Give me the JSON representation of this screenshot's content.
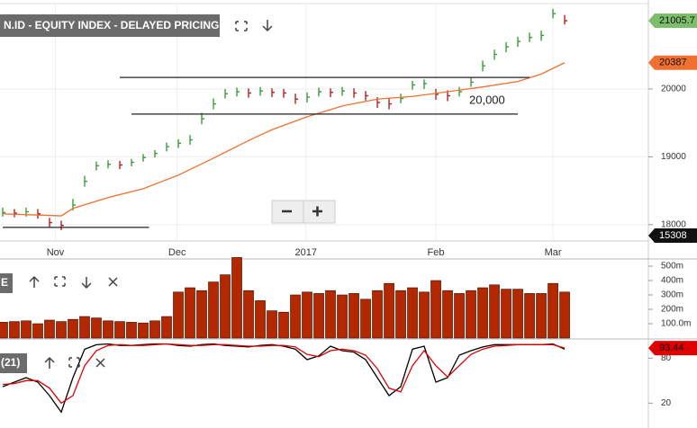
{
  "chart_data": [
    {
      "type": "ohlc",
      "title": "N.ID - EQUITY INDEX - DELAYED PRICING",
      "xlim": [
        -0.23,
        55.15
      ],
      "ylim": [
        17760,
        21245
      ],
      "yticks": [
        18000,
        19000,
        20000
      ],
      "grid": true,
      "xticks": [
        {
          "value": 4.5,
          "label": "Nov"
        },
        {
          "value": 14.9,
          "label": "Dec"
        },
        {
          "value": 25.9,
          "label": "2017"
        },
        {
          "value": 37,
          "label": "Feb"
        },
        {
          "value": 47,
          "label": "Mar"
        }
      ],
      "up_color": "#3a9d3a",
      "down_color": "#b22222",
      "high": [
        18250,
        18230,
        18250,
        18230,
        18100,
        18060,
        18380,
        18720,
        18930,
        18950,
        18940,
        18970,
        19040,
        19100,
        19210,
        19260,
        19320,
        19650,
        19860,
        20000,
        20020,
        20010,
        20030,
        20010,
        20000,
        19930,
        19950,
        20020,
        20010,
        20030,
        20010,
        19970,
        19880,
        19860,
        19930,
        20120,
        20140,
        20000,
        19980,
        20030,
        20170,
        20420,
        20580,
        20690,
        20770,
        20830,
        20860,
        21180,
        21090
      ],
      "low": [
        18120,
        18110,
        18120,
        18090,
        17960,
        17920,
        18210,
        18560,
        18800,
        18830,
        18820,
        18860,
        18930,
        18990,
        19080,
        19130,
        19180,
        19480,
        19700,
        19860,
        19890,
        19870,
        19900,
        19880,
        19870,
        19780,
        19800,
        19890,
        19880,
        19900,
        19870,
        19830,
        19720,
        19700,
        19790,
        19990,
        20000,
        19840,
        19820,
        19890,
        20030,
        20260,
        20430,
        20540,
        20620,
        20690,
        20710,
        21040,
        20950
      ],
      "close": [
        18180,
        18170,
        18190,
        18160,
        18030,
        17990,
        18290,
        18640,
        18870,
        18890,
        18880,
        18920,
        18990,
        19050,
        19150,
        19200,
        19250,
        19560,
        19780,
        19930,
        19960,
        19940,
        19970,
        19950,
        19940,
        19850,
        19880,
        19960,
        19950,
        19970,
        19940,
        19900,
        19800,
        19780,
        19860,
        20060,
        20080,
        19920,
        19900,
        19960,
        20100,
        20340,
        20510,
        20620,
        20700,
        20760,
        20790,
        21110,
        21005.7
      ],
      "ma": {
        "color": "#f07030",
        "x": [
          0,
          5,
          6,
          9,
          12,
          15,
          18,
          21,
          23,
          26,
          29,
          32,
          35,
          38,
          41,
          44,
          46,
          48
        ],
        "values": [
          18160,
          18130,
          18240,
          18400,
          18530,
          18730,
          18980,
          19240,
          19400,
          19590,
          19750,
          19850,
          19890,
          19960,
          20030,
          20110,
          20220,
          20387
        ]
      },
      "hlines": [
        {
          "value": 20170,
          "x": [
            10,
            45
          ]
        },
        {
          "value": 19630,
          "x": [
            11,
            44
          ]
        },
        {
          "value": 17960,
          "x": [
            0,
            12.5
          ]
        }
      ],
      "annotation": "20,000",
      "volume_tag": 15308
    },
    {
      "type": "bar",
      "title": "E",
      "color": "#b42800",
      "ylim": [
        0,
        550
      ],
      "yticks": [
        {
          "value": 100,
          "label": "100.0m"
        },
        {
          "value": 200,
          "label": "200m"
        },
        {
          "value": 300,
          "label": "300m"
        },
        {
          "value": 400,
          "label": "400m"
        },
        {
          "value": 500,
          "label": "500m"
        }
      ],
      "values": [
        110,
        115,
        120,
        100,
        125,
        115,
        130,
        150,
        140,
        120,
        115,
        110,
        105,
        120,
        150,
        320,
        350,
        330,
        390,
        440,
        560,
        330,
        260,
        190,
        180,
        300,
        320,
        310,
        330,
        300,
        310,
        270,
        330,
        380,
        330,
        350,
        320,
        400,
        330,
        310,
        330,
        350,
        370,
        340,
        340,
        310,
        310,
        380,
        320
      ]
    },
    {
      "type": "line",
      "title": "(21)",
      "ylim": [
        -13.2,
        104.4
      ],
      "yticks": [
        20,
        80
      ],
      "series": [
        {
          "color": "#000000",
          "values": [
            42,
            48,
            54,
            48,
            30,
            8,
            54,
            92,
            98,
            99,
            97,
            97,
            98,
            99,
            99,
            97,
            96,
            98,
            99,
            97,
            96,
            95,
            97,
            98,
            96,
            92,
            78,
            83,
            96,
            90,
            88,
            78,
            54,
            30,
            42,
            92,
            96,
            48,
            54,
            84,
            90,
            95,
            98,
            98,
            98,
            98,
            98,
            99,
            92
          ]
        },
        {
          "color": "#e00000",
          "values": [
            45,
            46,
            50,
            50,
            40,
            20,
            30,
            70,
            90,
            97,
            98,
            97,
            97,
            98,
            99,
            98,
            97,
            97,
            98,
            98,
            97,
            96,
            96,
            97,
            97,
            95,
            85,
            82,
            90,
            92,
            90,
            84,
            66,
            40,
            35,
            70,
            90,
            70,
            55,
            70,
            85,
            92,
            96,
            97,
            98,
            98,
            98,
            98,
            93.44
          ]
        }
      ]
    }
  ]
}
